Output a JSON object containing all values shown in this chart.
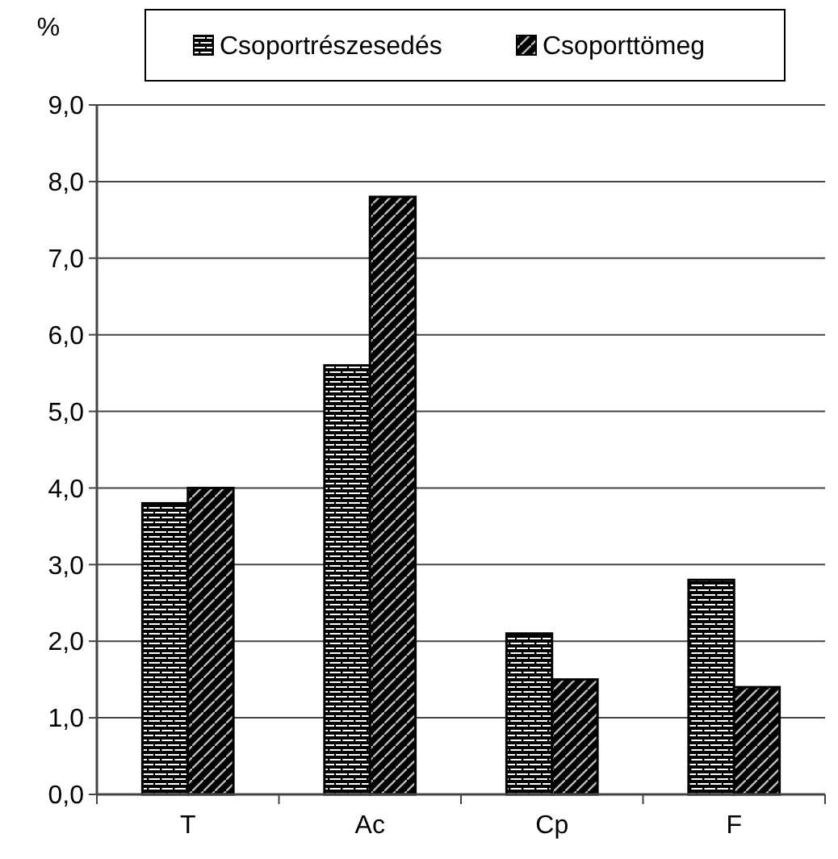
{
  "chart_data": {
    "type": "bar",
    "ylabel": "%",
    "categories": [
      "T",
      "Ac",
      "Cp",
      "F"
    ],
    "series": [
      {
        "name": "Csoportrészesedés",
        "color": "#000000",
        "values": [
          3.8,
          5.6,
          2.1,
          2.8
        ]
      },
      {
        "name": "Csoporttömeg",
        "color": "#000000",
        "values": [
          4.0,
          7.8,
          1.5,
          1.4
        ]
      }
    ],
    "ylim": [
      0,
      9
    ],
    "yticks": [
      {
        "value": 0,
        "label": "0,0"
      },
      {
        "value": 1,
        "label": "1,0"
      },
      {
        "value": 2,
        "label": "2,0"
      },
      {
        "value": 3,
        "label": "3,0"
      },
      {
        "value": 4,
        "label": "4,0"
      },
      {
        "value": 5,
        "label": "5,0"
      },
      {
        "value": 6,
        "label": "6,0"
      },
      {
        "value": 7,
        "label": "7,0"
      },
      {
        "value": 8,
        "label": "8,0"
      },
      {
        "value": 9,
        "label": "9,0"
      }
    ],
    "grid": "y",
    "legend": "top"
  }
}
